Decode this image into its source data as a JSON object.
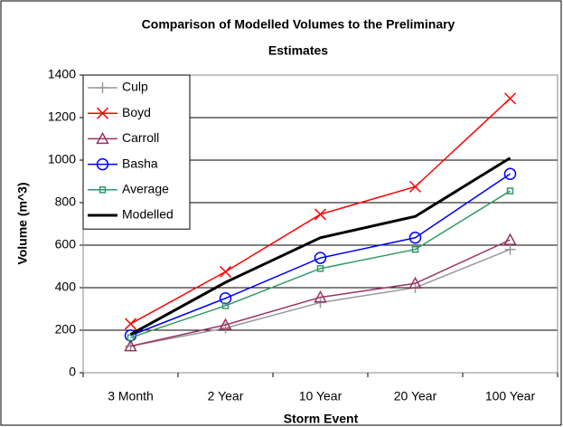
{
  "chart_data": {
    "type": "line",
    "title": [
      "Comparison of Modelled Volumes to the Preliminary",
      "Estimates"
    ],
    "xlabel": "Storm Event",
    "ylabel": "Volume (m^3)",
    "categories": [
      "3 Month",
      "2 Year",
      "10 Year",
      "20 Year",
      "100 Year"
    ],
    "series": [
      {
        "name": "Culp",
        "color": "#999999",
        "marker": "plus",
        "values": [
          125,
          210,
          330,
          400,
          580
        ]
      },
      {
        "name": "Boyd",
        "color": "#ff0000",
        "marker": "x",
        "values": [
          230,
          475,
          745,
          875,
          1290
        ]
      },
      {
        "name": "Carroll",
        "color": "#993366",
        "marker": "triangle",
        "values": [
          125,
          225,
          355,
          420,
          625
        ]
      },
      {
        "name": "Basha",
        "color": "#0000ff",
        "marker": "circle",
        "values": [
          175,
          350,
          540,
          635,
          935
        ]
      },
      {
        "name": "Average",
        "color": "#339966",
        "marker": "square",
        "values": [
          165,
          315,
          490,
          580,
          855
        ]
      },
      {
        "name": "Modelled",
        "color": "#000000",
        "marker": "none",
        "values": [
          180,
          425,
          635,
          735,
          1010
        ]
      }
    ],
    "ylim": [
      0,
      1400
    ],
    "yticks": [
      0,
      200,
      400,
      600,
      800,
      1000,
      1200,
      1400
    ],
    "grid": true,
    "legend": "upper left"
  }
}
